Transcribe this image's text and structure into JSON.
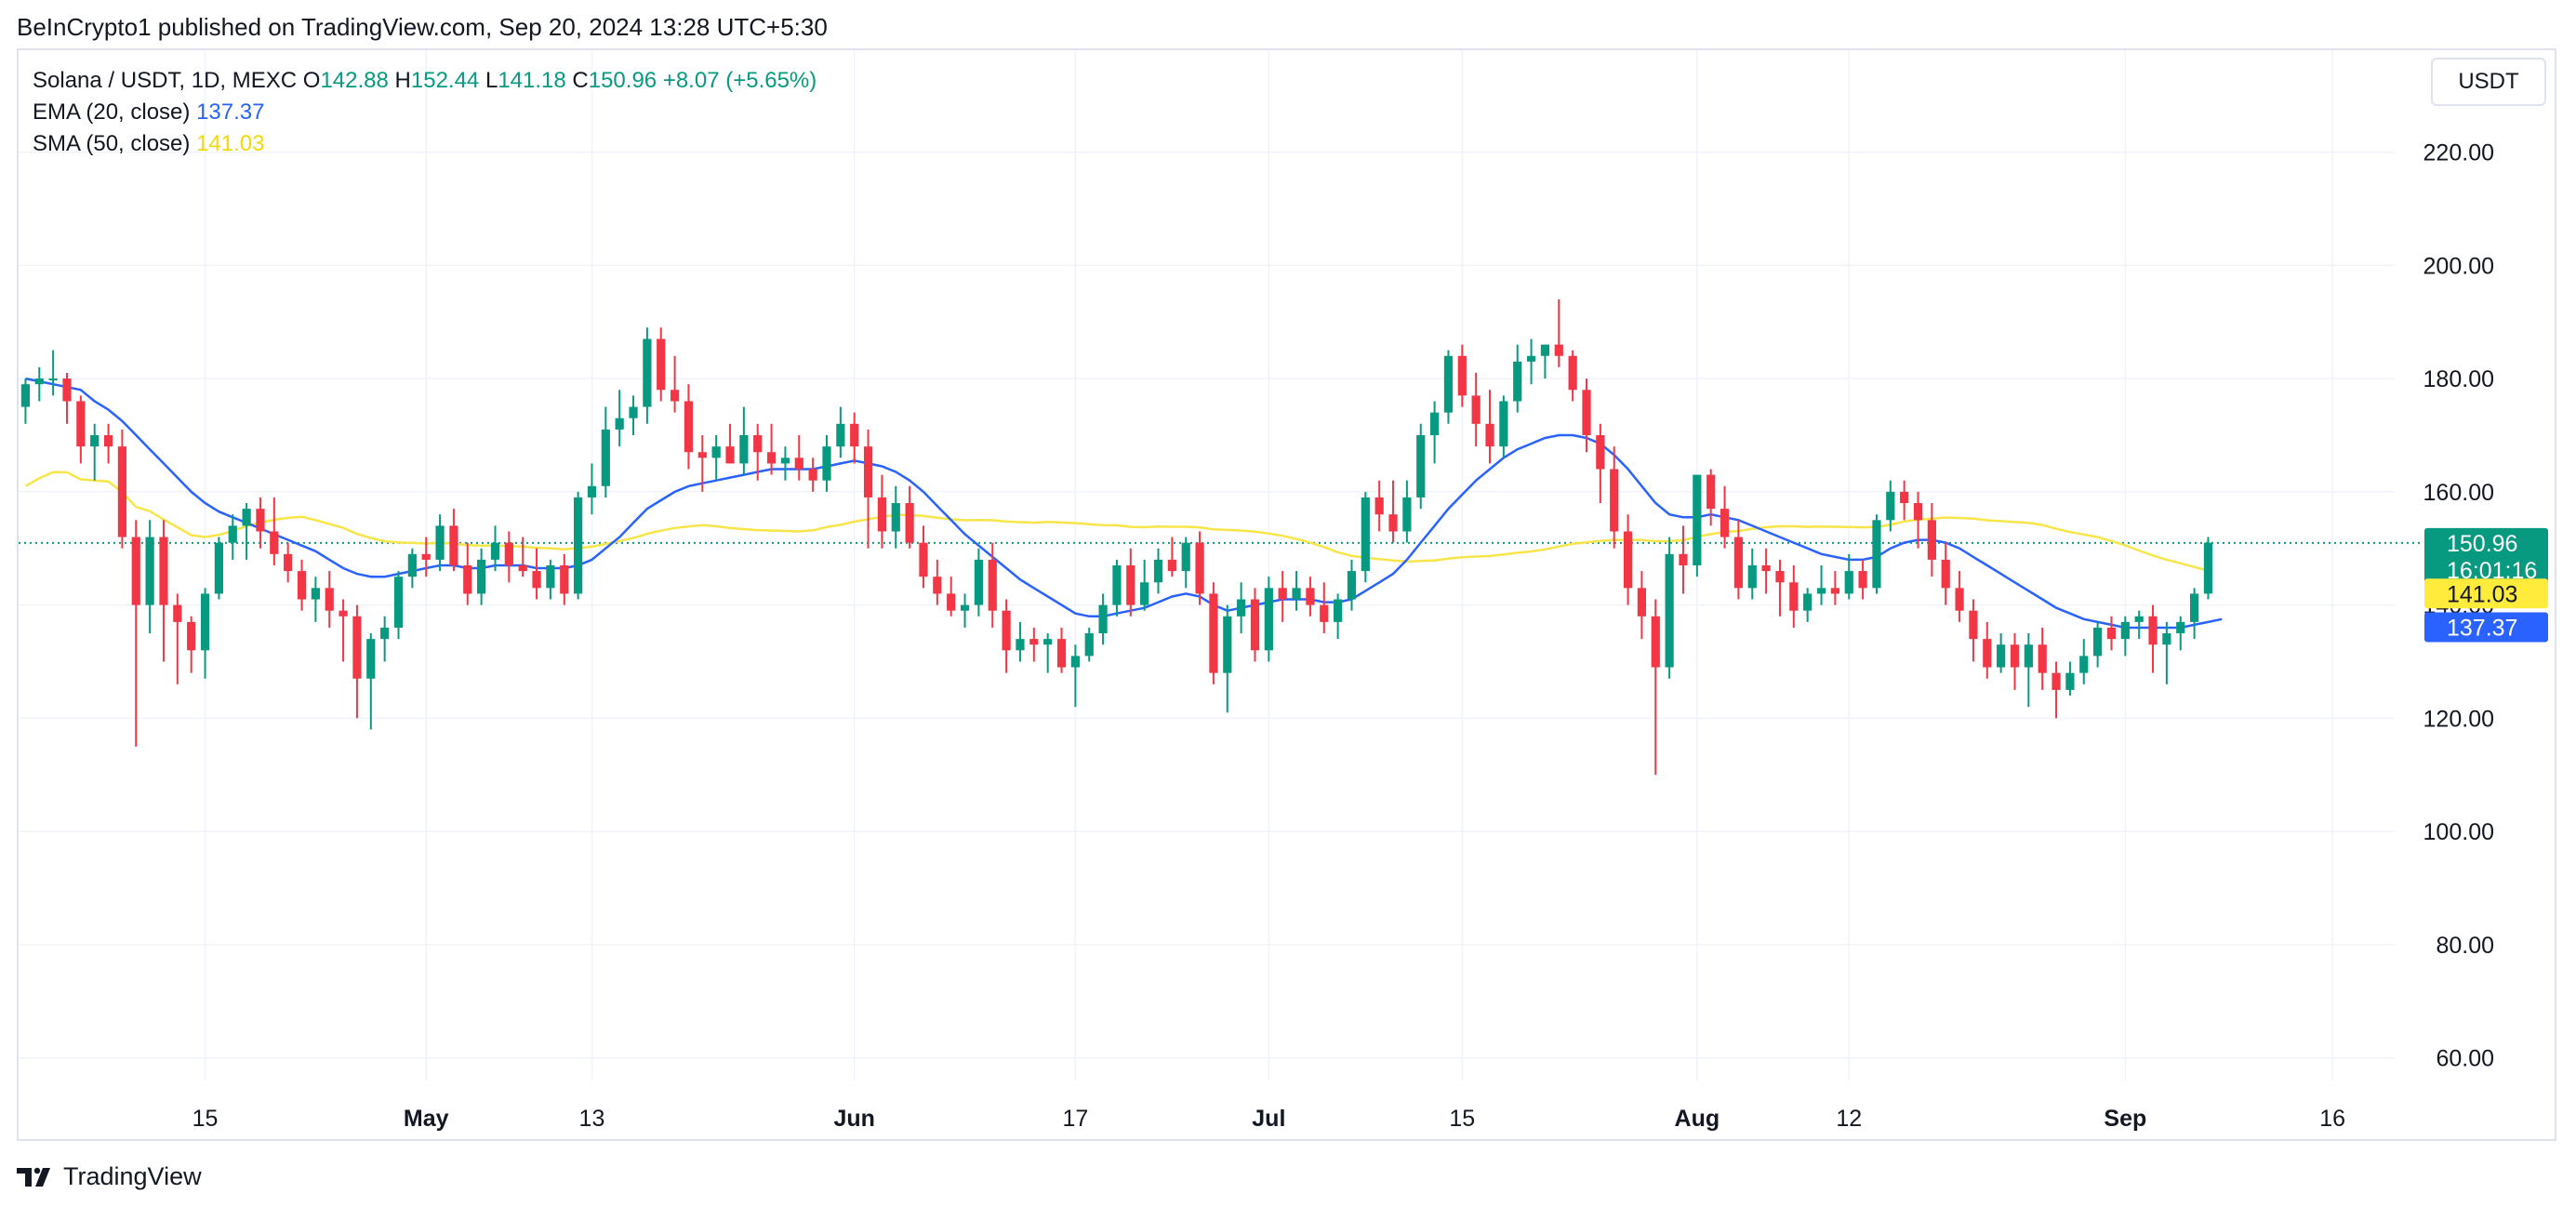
{
  "header": {
    "published_text": "BeInCrypto1 published on TradingView.com, Sep 20, 2024 13:28 UTC+5:30"
  },
  "legend": {
    "symbol": "Solana / USDT, 1D, MEXC",
    "o_label": "O",
    "o_value": "142.88",
    "h_label": "H",
    "h_value": "152.44",
    "l_label": "L",
    "l_value": "141.18",
    "c_label": "C",
    "c_value": "150.96",
    "change": "+8.07 (+5.65%)",
    "ema_label": "EMA (20, close)",
    "ema_value": "137.37",
    "sma_label": "SMA (50, close)",
    "sma_value": "141.03"
  },
  "currency_button": "USDT",
  "brand": {
    "name": "TradingView",
    "logo": "tradingview-logo-icon"
  },
  "colors": {
    "up": "#089981",
    "down": "#f23645",
    "ema": "#2962ff",
    "sma": "#f7e54a",
    "grid": "#f0f3fa",
    "axis_text": "#131722"
  },
  "chart_data": {
    "type": "candlestick",
    "ylim": [
      56,
      238
    ],
    "y_ticks": [
      "60.00",
      "80.00",
      "100.00",
      "120.00",
      "140.00",
      "160.00",
      "180.00",
      "200.00",
      "220.00"
    ],
    "x_ticks": [
      {
        "label": "15",
        "index": 13,
        "bold": false
      },
      {
        "label": "May",
        "index": 29,
        "bold": true
      },
      {
        "label": "13",
        "index": 41,
        "bold": false
      },
      {
        "label": "Jun",
        "index": 60,
        "bold": true
      },
      {
        "label": "17",
        "index": 76,
        "bold": false
      },
      {
        "label": "Jul",
        "index": 90,
        "bold": true
      },
      {
        "label": "15",
        "index": 104,
        "bold": false
      },
      {
        "label": "Aug",
        "index": 121,
        "bold": true
      },
      {
        "label": "12",
        "index": 132,
        "bold": false
      },
      {
        "label": "Sep",
        "index": 152,
        "bold": true
      },
      {
        "label": "16",
        "index": 167,
        "bold": false
      }
    ],
    "x_range": [
      0,
      172
    ],
    "current_price": {
      "value": 150.96,
      "label": "150.96",
      "countdown": "16:01:16"
    },
    "sma_marker": {
      "value": 141.03,
      "label": "141.03"
    },
    "ema_marker": {
      "value": 137.37,
      "label": "137.37"
    },
    "candles": [
      [
        175,
        180,
        172,
        179
      ],
      [
        179,
        182,
        176,
        180
      ],
      [
        180,
        185,
        177,
        180
      ],
      [
        180,
        181,
        172,
        176
      ],
      [
        176,
        177,
        165,
        168
      ],
      [
        168,
        172,
        162,
        170
      ],
      [
        170,
        172,
        165,
        168
      ],
      [
        168,
        171,
        150,
        152
      ],
      [
        152,
        155,
        115,
        140
      ],
      [
        140,
        155,
        135,
        152
      ],
      [
        152,
        155,
        130,
        140
      ],
      [
        140,
        142,
        126,
        137
      ],
      [
        137,
        138,
        128,
        132
      ],
      [
        132,
        143,
        127,
        142
      ],
      [
        142,
        152,
        141,
        151
      ],
      [
        151,
        156,
        148,
        154
      ],
      [
        154,
        158,
        148,
        157
      ],
      [
        157,
        159,
        150,
        153
      ],
      [
        153,
        159,
        147,
        149
      ],
      [
        149,
        151,
        144,
        146
      ],
      [
        146,
        148,
        139,
        141
      ],
      [
        141,
        145,
        137,
        143
      ],
      [
        143,
        146,
        136,
        139
      ],
      [
        139,
        141,
        130,
        138
      ],
      [
        138,
        140,
        120,
        127
      ],
      [
        127,
        135,
        118,
        134
      ],
      [
        134,
        138,
        130,
        136
      ],
      [
        136,
        146,
        134,
        145
      ],
      [
        145,
        150,
        143,
        149
      ],
      [
        149,
        152,
        145,
        148
      ],
      [
        148,
        156,
        146,
        154
      ],
      [
        154,
        157,
        146,
        147
      ],
      [
        147,
        151,
        140,
        142
      ],
      [
        142,
        150,
        140,
        148
      ],
      [
        148,
        154,
        146,
        151
      ],
      [
        151,
        153,
        144,
        147
      ],
      [
        147,
        152,
        145,
        146
      ],
      [
        146,
        150,
        141,
        143
      ],
      [
        143,
        148,
        141,
        147
      ],
      [
        147,
        149,
        140,
        142
      ],
      [
        142,
        160,
        141,
        159
      ],
      [
        159,
        165,
        156,
        161
      ],
      [
        161,
        175,
        159,
        171
      ],
      [
        171,
        178,
        168,
        173
      ],
      [
        173,
        177,
        170,
        175
      ],
      [
        175,
        189,
        172,
        187
      ],
      [
        187,
        189,
        176,
        178
      ],
      [
        178,
        184,
        174,
        176
      ],
      [
        176,
        179,
        164,
        167
      ],
      [
        167,
        170,
        160,
        166
      ],
      [
        166,
        170,
        162,
        168
      ],
      [
        168,
        172,
        165,
        165
      ],
      [
        165,
        175,
        163,
        170
      ],
      [
        170,
        172,
        162,
        167
      ],
      [
        167,
        172,
        163,
        165
      ],
      [
        165,
        168,
        162,
        166
      ],
      [
        166,
        170,
        162,
        164
      ],
      [
        164,
        166,
        160,
        162
      ],
      [
        162,
        170,
        160,
        168
      ],
      [
        168,
        175,
        166,
        172
      ],
      [
        172,
        174,
        165,
        168
      ],
      [
        168,
        171,
        150,
        159
      ],
      [
        159,
        163,
        150,
        153
      ],
      [
        153,
        161,
        150,
        158
      ],
      [
        158,
        161,
        150,
        151
      ],
      [
        151,
        154,
        143,
        145
      ],
      [
        145,
        148,
        140,
        142
      ],
      [
        142,
        145,
        138,
        139
      ],
      [
        139,
        142,
        136,
        140
      ],
      [
        140,
        150,
        138,
        148
      ],
      [
        148,
        151,
        136,
        139
      ],
      [
        139,
        141,
        128,
        132
      ],
      [
        132,
        137,
        130,
        134
      ],
      [
        134,
        136,
        130,
        133
      ],
      [
        133,
        135,
        128,
        134
      ],
      [
        134,
        136,
        128,
        129
      ],
      [
        129,
        133,
        122,
        131
      ],
      [
        131,
        136,
        130,
        135
      ],
      [
        135,
        142,
        133,
        140
      ],
      [
        140,
        148,
        138,
        147
      ],
      [
        147,
        150,
        138,
        140
      ],
      [
        140,
        148,
        139,
        144
      ],
      [
        144,
        150,
        142,
        148
      ],
      [
        148,
        152,
        145,
        146
      ],
      [
        146,
        152,
        143,
        151
      ],
      [
        151,
        153,
        140,
        142
      ],
      [
        142,
        144,
        126,
        128
      ],
      [
        128,
        140,
        121,
        138
      ],
      [
        138,
        144,
        135,
        141
      ],
      [
        141,
        143,
        130,
        132
      ],
      [
        132,
        145,
        130,
        143
      ],
      [
        143,
        146,
        137,
        141
      ],
      [
        141,
        146,
        139,
        143
      ],
      [
        143,
        145,
        138,
        140
      ],
      [
        140,
        144,
        135,
        137
      ],
      [
        137,
        142,
        134,
        141
      ],
      [
        141,
        148,
        139,
        146
      ],
      [
        146,
        160,
        144,
        159
      ],
      [
        159,
        162,
        153,
        156
      ],
      [
        156,
        162,
        151,
        153
      ],
      [
        153,
        162,
        151,
        159
      ],
      [
        159,
        172,
        157,
        170
      ],
      [
        170,
        176,
        165,
        174
      ],
      [
        174,
        185,
        172,
        184
      ],
      [
        184,
        186,
        175,
        177
      ],
      [
        177,
        181,
        168,
        172
      ],
      [
        172,
        178,
        165,
        168
      ],
      [
        168,
        177,
        166,
        176
      ],
      [
        176,
        186,
        174,
        183
      ],
      [
        183,
        187,
        179,
        184
      ],
      [
        184,
        186,
        180,
        186
      ],
      [
        186,
        194,
        182,
        184
      ],
      [
        184,
        185,
        176,
        178
      ],
      [
        178,
        180,
        167,
        170
      ],
      [
        170,
        172,
        158,
        164
      ],
      [
        164,
        168,
        150,
        153
      ],
      [
        153,
        156,
        140,
        143
      ],
      [
        143,
        146,
        134,
        138
      ],
      [
        138,
        141,
        110,
        129
      ],
      [
        129,
        152,
        127,
        149
      ],
      [
        149,
        154,
        142,
        147
      ],
      [
        147,
        163,
        145,
        163
      ],
      [
        163,
        164,
        154,
        157
      ],
      [
        157,
        161,
        150,
        152
      ],
      [
        152,
        155,
        141,
        143
      ],
      [
        143,
        150,
        141,
        147
      ],
      [
        147,
        150,
        142,
        146
      ],
      [
        146,
        148,
        138,
        144
      ],
      [
        144,
        147,
        136,
        139
      ],
      [
        139,
        143,
        137,
        142
      ],
      [
        142,
        147,
        140,
        143
      ],
      [
        143,
        146,
        140,
        142
      ],
      [
        142,
        149,
        141,
        146
      ],
      [
        146,
        148,
        141,
        143
      ],
      [
        143,
        156,
        142,
        155
      ],
      [
        155,
        162,
        153,
        160
      ],
      [
        160,
        162,
        155,
        158
      ],
      [
        158,
        160,
        150,
        155
      ],
      [
        155,
        158,
        145,
        148
      ],
      [
        148,
        151,
        140,
        143
      ],
      [
        143,
        146,
        137,
        139
      ],
      [
        139,
        141,
        130,
        134
      ],
      [
        134,
        137,
        127,
        129
      ],
      [
        129,
        135,
        128,
        133
      ],
      [
        133,
        135,
        125,
        129
      ],
      [
        129,
        135,
        122,
        133
      ],
      [
        133,
        136,
        125,
        128
      ],
      [
        128,
        130,
        120,
        125
      ],
      [
        125,
        130,
        124,
        128
      ],
      [
        128,
        134,
        126,
        131
      ],
      [
        131,
        137,
        129,
        136
      ],
      [
        136,
        138,
        132,
        134
      ],
      [
        134,
        138,
        131,
        137
      ],
      [
        137,
        139,
        134,
        138
      ],
      [
        138,
        140,
        128,
        133
      ],
      [
        133,
        137,
        126,
        135
      ],
      [
        135,
        138,
        132,
        137
      ],
      [
        137,
        143,
        134,
        142
      ],
      [
        142,
        152,
        141,
        151
      ]
    ],
    "ema": [
      180,
      179.5,
      179,
      178.5,
      178,
      176,
      174.5,
      172.5,
      170,
      167.5,
      165,
      162.5,
      160,
      158,
      156.5,
      155.5,
      154.5,
      153.5,
      152.5,
      151.5,
      150.5,
      149.5,
      148,
      146.5,
      145.5,
      145,
      145,
      145.5,
      146,
      146.5,
      147,
      147,
      146.5,
      146.5,
      147,
      147,
      147,
      146.5,
      146.5,
      146.5,
      147,
      148,
      150,
      152,
      154.5,
      157,
      158.5,
      160,
      161,
      161.5,
      162,
      162.5,
      163,
      163.5,
      164,
      164,
      164,
      164,
      164.5,
      165,
      165.5,
      165,
      164.5,
      163.5,
      162,
      160,
      157.5,
      155,
      152.5,
      150.5,
      148.5,
      146.5,
      144.5,
      143,
      141.5,
      140,
      138.5,
      138,
      138,
      138.5,
      139,
      139.5,
      140.5,
      141.5,
      142,
      141.5,
      140,
      139,
      139.5,
      140,
      140.5,
      141,
      141,
      141,
      140.5,
      140.5,
      141,
      142.5,
      144,
      145.5,
      148,
      151,
      154,
      157,
      159.5,
      162,
      164,
      166,
      167.5,
      168.5,
      169.5,
      170,
      170,
      169.5,
      168.5,
      166.5,
      164,
      161,
      158,
      156,
      155.5,
      155.5,
      156,
      155.5,
      155,
      154,
      153,
      152,
      151,
      150,
      149,
      148.5,
      148,
      148,
      148.5,
      150,
      151,
      151.5,
      151.5,
      151,
      150,
      148.5,
      147,
      145.5,
      144,
      142.5,
      141,
      139.5,
      138.5,
      137.5,
      137,
      136.5,
      136,
      136,
      136,
      136,
      136,
      136.5,
      137,
      137.5
    ]
  }
}
